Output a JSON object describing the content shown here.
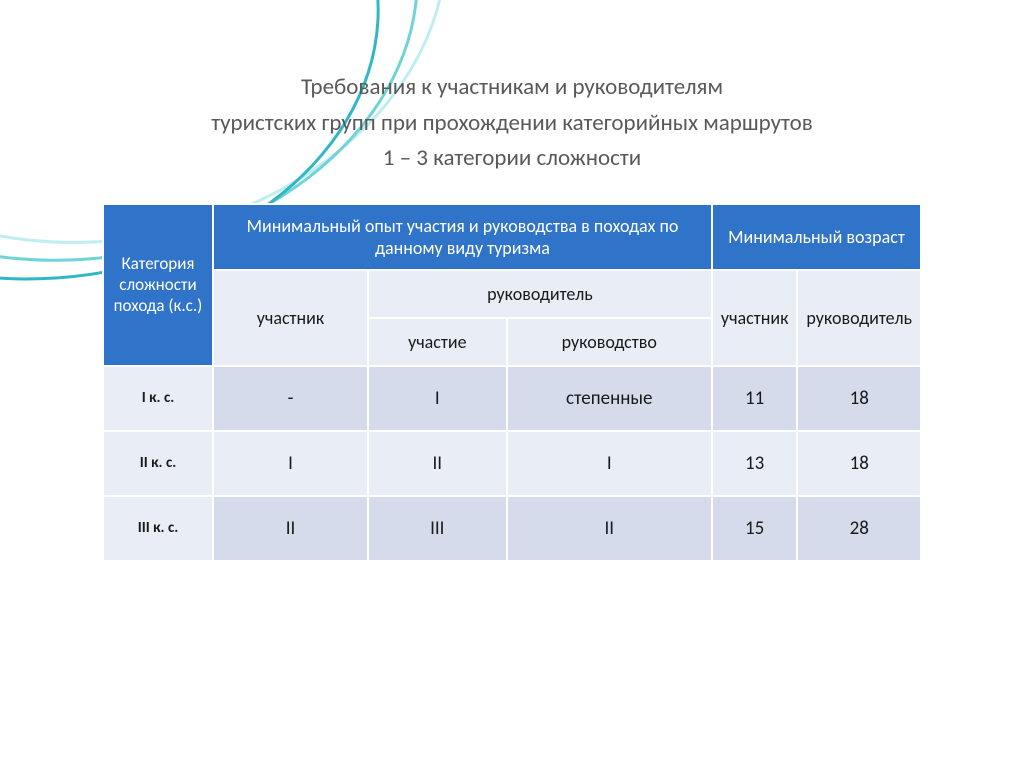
{
  "title": {
    "line1": "Требования к участникам и руководителям",
    "line2": "туристских групп  при прохождении категорийных маршрутов",
    "line3": "1 – 3 категории сложности"
  },
  "colors": {
    "header_bg": "#2f74c8",
    "header_text": "#ffffff",
    "band_light": "#e9edf6",
    "band_dark": "#d6dbeb",
    "title_text": "#595959",
    "cell_text": "#1a1a1a",
    "border": "#ffffff",
    "wave1": "#6fd4d8",
    "wave2": "#2fb7c4",
    "wave3": "#bfeef0"
  },
  "table": {
    "type": "table",
    "col_header_category": "Категория сложности похода (к.с.)",
    "col_header_experience": "Минимальный опыт участия и руководства в  походах по данному виду туризма",
    "col_header_age": "Минимальный возраст",
    "sub_participant": "участник",
    "sub_leader": "руководитель",
    "sub_participation": "участие",
    "sub_leadership": "руководство",
    "sub_age_participant": "участник",
    "sub_age_leader": "руководитель",
    "rows": [
      {
        "label": "I к. с.",
        "exp_participant": "-",
        "exp_leader_part": "I",
        "exp_leader_lead": "степенные",
        "age_participant": "11",
        "age_leader": "18"
      },
      {
        "label": "II к. с.",
        "exp_participant": "I",
        "exp_leader_part": "II",
        "exp_leader_lead": "I",
        "age_participant": "13",
        "age_leader": "18"
      },
      {
        "label": "III к. с.",
        "exp_participant": "II",
        "exp_leader_part": "III",
        "exp_leader_lead": "II",
        "age_participant": "15",
        "age_leader": "28"
      }
    ],
    "fontsize_header": 18,
    "fontsize_cell": 19,
    "fontsize_rowlabel": 15
  }
}
